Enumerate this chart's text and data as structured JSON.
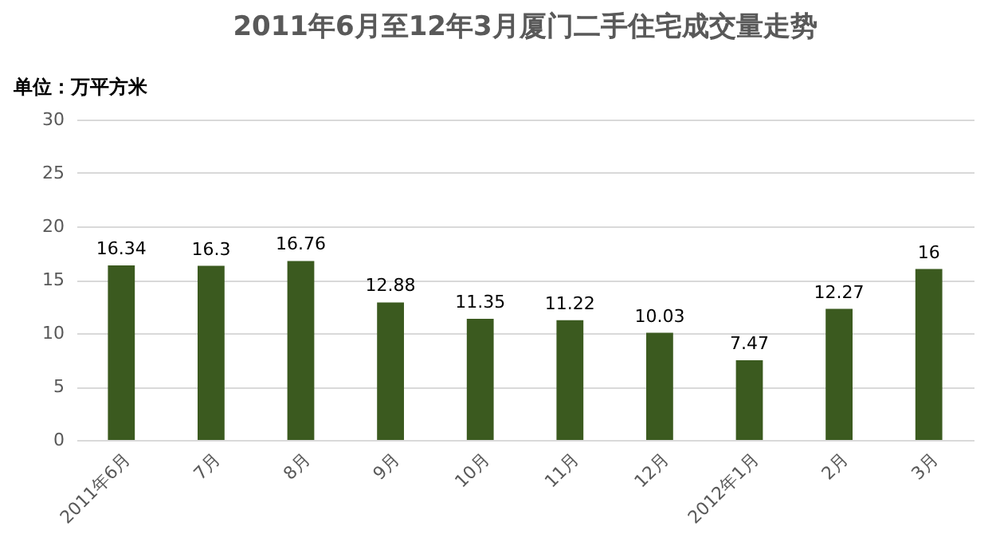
{
  "chart_data": {
    "type": "bar",
    "title": "2011年6月至12年3月厦门二手住宅成交量走势",
    "ylabel": "单位：万平方米",
    "categories": [
      "2011年6月",
      "7月",
      "8月",
      "9月",
      "10月",
      "11月",
      "12月",
      "2012年1月",
      "2月",
      "3月"
    ],
    "values": [
      16.34,
      16.3,
      16.76,
      12.88,
      11.35,
      11.22,
      10.03,
      7.47,
      12.27,
      16
    ],
    "color": "#3b5a1f",
    "ylim": [
      0,
      30
    ],
    "yticks": [
      0,
      5,
      10,
      15,
      20,
      25,
      30
    ],
    "grid": "y",
    "data_labels": true
  }
}
